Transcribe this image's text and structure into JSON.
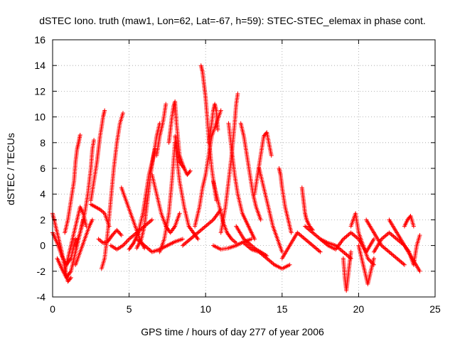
{
  "chart_data": {
    "type": "scatter",
    "title": "dSTEC Iono. truth (maw1, Lon=62, Lat=-67, h=59): STEC-STEC_elemax in phase cont.",
    "xlabel": "GPS time / hours of day 277 of year 2006",
    "ylabel": "dSTEC  / TECUs",
    "xlim": [
      0,
      25
    ],
    "ylim": [
      -4,
      16
    ],
    "xticks": [
      0,
      5,
      10,
      15,
      20,
      25
    ],
    "yticks": [
      -4,
      -2,
      0,
      2,
      4,
      6,
      8,
      10,
      12,
      14,
      16
    ],
    "grid": true,
    "marker": "+",
    "color": "#ff0000",
    "series": [
      {
        "arcs": [
          {
            "x": [
              0.0,
              0.3,
              0.6,
              0.9,
              1.2,
              1.5
            ],
            "y": [
              1.0,
              0.2,
              -0.8,
              -1.5,
              -1.0,
              0.5
            ]
          },
          {
            "x": [
              0.0,
              0.2,
              0.4,
              0.6,
              0.8,
              1.0,
              1.2
            ],
            "y": [
              2.5,
              1.5,
              0.5,
              -0.5,
              -1.8,
              -2.8,
              -2.5
            ]
          },
          {
            "x": [
              0.3,
              0.6,
              0.9,
              1.2,
              1.4,
              1.6,
              1.8,
              2.0
            ],
            "y": [
              -1.0,
              -1.8,
              -2.5,
              -2.0,
              -1.0,
              0.0,
              1.0,
              2.0
            ]
          },
          {
            "x": [
              0.8,
              1.0,
              1.2,
              1.4,
              1.5,
              1.6,
              1.7,
              1.8
            ],
            "y": [
              1.0,
              2.0,
              3.5,
              5.0,
              6.5,
              7.5,
              8.0,
              8.6
            ]
          },
          {
            "x": [
              0.8,
              1.0,
              1.2,
              1.4,
              1.6,
              1.8,
              2.0,
              2.2
            ],
            "y": [
              -2.0,
              -1.0,
              0.0,
              1.0,
              2.0,
              3.0,
              2.5,
              1.5
            ]
          },
          {
            "x": [
              1.5,
              1.8,
              2.1,
              2.3,
              2.5,
              2.6,
              2.7
            ],
            "y": [
              0.0,
              1.0,
              2.5,
              4.0,
              6.0,
              7.5,
              8.2
            ]
          },
          {
            "x": [
              1.5,
              1.8,
              2.1,
              2.4,
              2.6
            ],
            "y": [
              -1.5,
              -0.5,
              0.5,
              1.5,
              2.0
            ]
          },
          {
            "x": [
              2.5,
              2.7,
              2.9,
              3.0,
              3.1,
              3.2,
              3.3,
              3.4
            ],
            "y": [
              3.5,
              5.0,
              6.5,
              7.5,
              8.5,
              9.2,
              10.0,
              10.5
            ]
          },
          {
            "x": [
              2.5,
              2.8,
              3.1,
              3.4,
              3.7
            ],
            "y": [
              3.2,
              3.0,
              2.8,
              2.5,
              1.5
            ]
          },
          {
            "x": [
              3.0,
              3.3,
              3.6,
              3.9,
              4.2,
              4.5
            ],
            "y": [
              0.5,
              0.2,
              0.3,
              0.8,
              1.2,
              0.8
            ]
          },
          {
            "x": [
              3.2,
              3.4,
              3.6,
              3.8,
              4.0,
              4.2,
              4.4,
              4.6
            ],
            "y": [
              -1.8,
              -1.0,
              1.0,
              3.5,
              6.0,
              8.0,
              9.5,
              10.3
            ]
          },
          {
            "x": [
              3.8,
              4.2,
              4.6,
              5.0,
              5.5,
              6.0,
              6.5
            ],
            "y": [
              0.0,
              -0.3,
              0.0,
              0.5,
              1.0,
              1.5,
              2.0
            ]
          },
          {
            "x": [
              4.5,
              4.8,
              5.1,
              5.4,
              5.7,
              6.0
            ],
            "y": [
              4.5,
              3.5,
              2.5,
              1.5,
              0.5,
              -0.2
            ]
          },
          {
            "x": [
              5.0,
              5.3,
              5.6,
              5.9,
              6.1,
              6.3,
              6.5,
              6.7
            ],
            "y": [
              -0.3,
              0.2,
              1.0,
              2.5,
              4.0,
              5.5,
              6.5,
              7.5
            ]
          },
          {
            "x": [
              5.5,
              5.8,
              6.0,
              6.2,
              6.4,
              6.6,
              6.8,
              7.0
            ],
            "y": [
              -0.2,
              0.5,
              1.5,
              3.5,
              5.5,
              7.0,
              8.5,
              9.5
            ]
          },
          {
            "x": [
              5.5,
              6.0,
              6.5,
              7.0,
              7.5,
              8.0,
              8.5
            ],
            "y": [
              0.5,
              0.0,
              -0.5,
              -0.3,
              0.0,
              0.3,
              0.5
            ]
          },
          {
            "x": [
              6.8,
              7.0,
              7.2,
              7.3,
              7.4
            ],
            "y": [
              7.0,
              8.5,
              9.5,
              10.2,
              11.0
            ]
          },
          {
            "x": [
              6.5,
              6.8,
              7.1,
              7.4,
              7.7,
              8.0,
              8.3
            ],
            "y": [
              5.5,
              4.0,
              2.5,
              1.5,
              1.0,
              1.5,
              2.5
            ]
          },
          {
            "x": [
              7.0,
              7.3,
              7.6,
              7.8,
              8.0
            ],
            "y": [
              -0.5,
              0.5,
              2.5,
              5.0,
              8.0
            ]
          },
          {
            "x": [
              7.6,
              7.7,
              7.8,
              7.9,
              8.0,
              8.1,
              8.3,
              8.6
            ],
            "y": [
              8.0,
              9.0,
              10.0,
              10.8,
              11.2,
              9.5,
              7.0,
              6.0
            ]
          },
          {
            "x": [
              8.0,
              8.3,
              8.6,
              8.8,
              9.0
            ],
            "y": [
              8.5,
              6.5,
              6.0,
              5.5,
              5.8
            ]
          },
          {
            "x": [
              8.0,
              8.3,
              8.6,
              8.9,
              9.2,
              9.5
            ],
            "y": [
              8.0,
              5.0,
              3.0,
              1.5,
              1.0,
              0.5
            ]
          },
          {
            "x": [
              8.5,
              9.0,
              9.5,
              10.0,
              10.5,
              11.0
            ],
            "y": [
              0.0,
              0.5,
              1.0,
              1.5,
              2.0,
              2.8
            ]
          },
          {
            "x": [
              9.3,
              9.6,
              9.8,
              10.0,
              10.2,
              10.4,
              10.7,
              11.0
            ],
            "y": [
              1.5,
              3.0,
              4.5,
              5.5,
              7.0,
              8.5,
              9.5,
              10.5
            ]
          },
          {
            "x": [
              9.7,
              9.8,
              9.9,
              10.0,
              10.1,
              10.2,
              10.4,
              10.7
            ],
            "y": [
              14.0,
              13.5,
              12.5,
              11.5,
              10.0,
              8.5,
              6.0,
              3.5
            ]
          },
          {
            "x": [
              10.2,
              10.4,
              10.5,
              10.6,
              10.7,
              10.8
            ],
            "y": [
              8.0,
              9.5,
              10.5,
              11.0,
              10.5,
              9.0
            ]
          },
          {
            "x": [
              10.5,
              10.8,
              11.1,
              11.4,
              11.7,
              12.0
            ],
            "y": [
              5.0,
              3.5,
              2.0,
              1.0,
              0.5,
              0.2
            ]
          },
          {
            "x": [
              10.5,
              11.0,
              11.5,
              12.0,
              12.5,
              13.0
            ],
            "y": [
              0.0,
              -0.3,
              -0.2,
              0.0,
              0.3,
              0.5
            ]
          },
          {
            "x": [
              11.0,
              11.3,
              11.5,
              11.7,
              11.9,
              12.0,
              12.1
            ],
            "y": [
              1.0,
              3.0,
              5.0,
              7.0,
              9.5,
              11.0,
              11.8
            ]
          },
          {
            "x": [
              11.5,
              11.7,
              11.9,
              12.1,
              12.4,
              12.8,
              13.2
            ],
            "y": [
              9.5,
              7.5,
              5.5,
              4.0,
              2.5,
              1.5,
              0.5
            ]
          },
          {
            "x": [
              12.3,
              12.5,
              12.7,
              12.9,
              13.1,
              13.3,
              13.6
            ],
            "y": [
              9.5,
              8.5,
              7.0,
              5.5,
              4.0,
              3.0,
              2.0
            ]
          },
          {
            "x": [
              12.0,
              12.5,
              13.0,
              13.3,
              13.6,
              14.0
            ],
            "y": [
              1.5,
              0.5,
              0.0,
              -0.3,
              -0.5,
              -0.8
            ]
          },
          {
            "x": [
              12.5,
              13.0,
              13.5,
              14.0,
              14.5,
              15.0,
              15.5
            ],
            "y": [
              0.2,
              -0.3,
              -0.5,
              -1.0,
              -1.5,
              -1.8,
              -1.5
            ]
          },
          {
            "x": [
              13.2,
              13.4,
              13.6,
              13.8,
              14.0,
              14.3
            ],
            "y": [
              4.0,
              5.5,
              7.0,
              8.5,
              8.8,
              7.0
            ]
          },
          {
            "x": [
              13.5,
              13.8,
              14.1,
              14.4,
              14.7,
              15.0
            ],
            "y": [
              6.0,
              4.5,
              3.0,
              1.5,
              0.5,
              -0.5
            ]
          },
          {
            "x": [
              14.8,
              14.9,
              15.0,
              15.2,
              15.4,
              15.6
            ],
            "y": [
              6.0,
              5.5,
              4.5,
              3.0,
              2.0,
              1.0
            ]
          },
          {
            "x": [
              15.0,
              15.5,
              16.0,
              16.5,
              17.0,
              17.5
            ],
            "y": [
              -1.0,
              0.0,
              1.0,
              0.5,
              0.0,
              -0.5
            ]
          },
          {
            "x": [
              16.3,
              16.4,
              16.5,
              16.6,
              16.8,
              17.0
            ],
            "y": [
              4.5,
              3.5,
              2.5,
              2.0,
              1.5,
              1.2
            ]
          },
          {
            "x": [
              16.5,
              17.0,
              17.5,
              18.0,
              18.5,
              19.0,
              19.5
            ],
            "y": [
              1.5,
              1.0,
              0.5,
              0.2,
              0.0,
              -0.5,
              -1.0
            ]
          },
          {
            "x": [
              17.5,
              18.0,
              18.5,
              19.0,
              19.5,
              20.0,
              20.5,
              21.0
            ],
            "y": [
              0.5,
              0.0,
              -0.3,
              0.5,
              1.0,
              0.5,
              -0.5,
              0.5
            ]
          },
          {
            "x": [
              19.0,
              19.1,
              19.2,
              19.3,
              19.4,
              19.5
            ],
            "y": [
              -1.0,
              -2.5,
              -3.5,
              -2.5,
              -1.5,
              -0.5
            ]
          },
          {
            "x": [
              19.5,
              19.8,
              20.0,
              20.3,
              20.6,
              21.0
            ],
            "y": [
              1.5,
              2.5,
              1.0,
              0.0,
              -1.0,
              -1.5
            ]
          },
          {
            "x": [
              20.0,
              20.2,
              20.4,
              20.6,
              20.8,
              21.0
            ],
            "y": [
              0.0,
              -1.0,
              -2.0,
              -3.0,
              -2.0,
              -1.0
            ]
          },
          {
            "x": [
              20.5,
              21.0,
              21.5,
              22.0,
              22.5,
              23.0
            ],
            "y": [
              2.0,
              1.0,
              0.0,
              -0.5,
              -1.0,
              -1.5
            ]
          },
          {
            "x": [
              21.0,
              21.5,
              22.0,
              22.5,
              23.0,
              23.5,
              24.0
            ],
            "y": [
              -0.5,
              0.5,
              1.0,
              0.5,
              0.0,
              -1.0,
              -2.0
            ]
          },
          {
            "x": [
              22.0,
              22.5,
              23.0,
              23.3,
              23.6,
              23.8,
              24.0
            ],
            "y": [
              2.0,
              1.0,
              0.0,
              -0.5,
              -1.5,
              0.0,
              0.8
            ]
          },
          {
            "x": [
              23.0,
              23.2,
              23.4,
              23.6
            ],
            "y": [
              1.5,
              2.0,
              2.3,
              1.5
            ]
          }
        ]
      }
    ]
  }
}
